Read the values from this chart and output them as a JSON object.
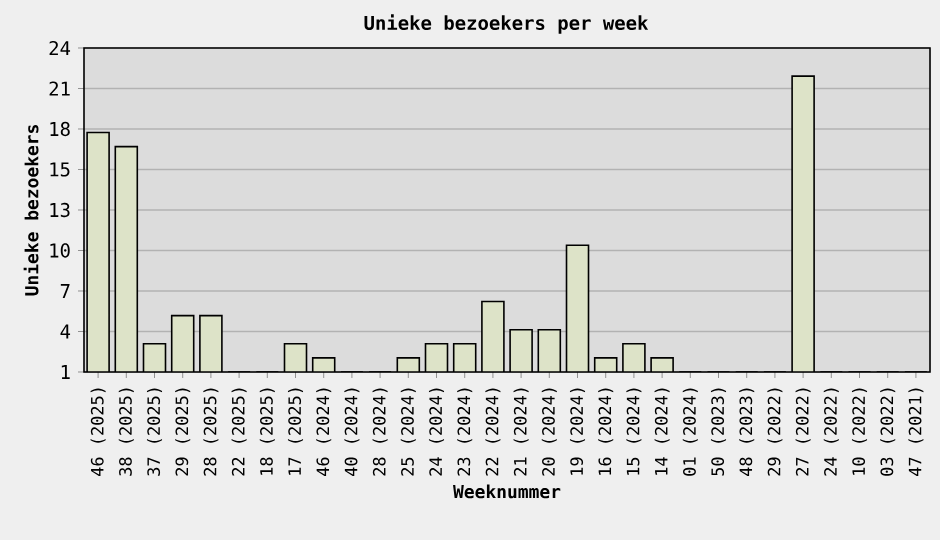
{
  "chart_data": {
    "type": "bar",
    "title": "Unieke bezoekers per week",
    "xlabel": "Weeknummer",
    "ylabel": "Unieke bezoekers",
    "categories": [
      "46 (2025)",
      "38 (2025)",
      "37 (2025)",
      "29 (2025)",
      "28 (2025)",
      "22 (2025)",
      "18 (2025)",
      "17 (2025)",
      "46 (2024)",
      "40 (2024)",
      "28 (2024)",
      "25 (2024)",
      "24 (2024)",
      "23 (2024)",
      "22 (2024)",
      "21 (2024)",
      "20 (2024)",
      "19 (2024)",
      "16 (2024)",
      "15 (2024)",
      "14 (2024)",
      "01 (2024)",
      "50 (2023)",
      "48 (2023)",
      "29 (2022)",
      "27 (2022)",
      "24 (2022)",
      "10 (2022)",
      "03 (2022)",
      "47 (2021)"
    ],
    "values": [
      18,
      17,
      3,
      5,
      5,
      1,
      1,
      3,
      2,
      1,
      1,
      2,
      3,
      3,
      6,
      4,
      4,
      10,
      2,
      3,
      2,
      1,
      1,
      1,
      1,
      22,
      1,
      1,
      1,
      1
    ],
    "color": "#dde3c8",
    "ylim": [
      1,
      24
    ],
    "yticks": [
      {
        "value": 1,
        "label": "1"
      },
      {
        "value": 3.875,
        "label": "4"
      },
      {
        "value": 6.75,
        "label": "7"
      },
      {
        "value": 9.625,
        "label": "10"
      },
      {
        "value": 12.5,
        "label": "13"
      },
      {
        "value": 15.375,
        "label": "15"
      },
      {
        "value": 18.25,
        "label": "18"
      },
      {
        "value": 21.125,
        "label": "21"
      },
      {
        "value": 24,
        "label": "24"
      }
    ],
    "grid": "y"
  }
}
